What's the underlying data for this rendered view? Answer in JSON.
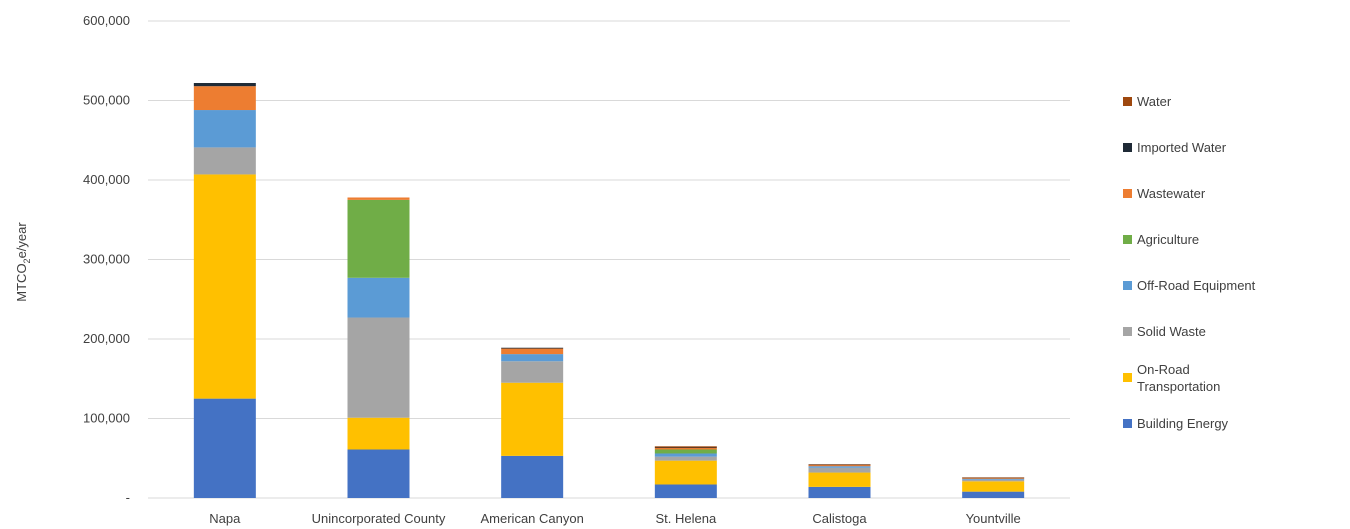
{
  "chart_data": {
    "type": "bar",
    "stacked": true,
    "ylabel": "MTCO2e/year",
    "ylim": [
      0,
      600000
    ],
    "yticks": [
      0,
      100000,
      200000,
      300000,
      400000,
      500000,
      600000
    ],
    "ytick_labels": [
      "-",
      "100,000",
      "200,000",
      "300,000",
      "400,000",
      "500,000",
      "600,000"
    ],
    "grid": true,
    "legend_position": "right",
    "categories": [
      "Napa",
      "Unincorporated County",
      "American Canyon",
      "St. Helena",
      "Calistoga",
      "Yountville"
    ],
    "series": [
      {
        "name": "Building Energy",
        "color": "#4472C4",
        "values": [
          125000,
          61000,
          53000,
          17000,
          14000,
          8000
        ]
      },
      {
        "name": "On-Road Transportation",
        "color": "#FFC000",
        "values": [
          282000,
          40000,
          92000,
          30000,
          18000,
          13000
        ]
      },
      {
        "name": "Solid Waste",
        "color": "#A5A5A5",
        "values": [
          34000,
          126000,
          27000,
          5000,
          6000,
          2000
        ]
      },
      {
        "name": "Off-Road Equipment",
        "color": "#5B9BD5",
        "values": [
          47000,
          50000,
          9000,
          4000,
          2000,
          1000
        ]
      },
      {
        "name": "Agriculture",
        "color": "#70AD47",
        "values": [
          0,
          98000,
          0,
          5000,
          0,
          0
        ]
      },
      {
        "name": "Wastewater",
        "color": "#ED7D31",
        "values": [
          30000,
          3000,
          7000,
          2000,
          1500,
          1000
        ]
      },
      {
        "name": "Imported Water",
        "color": "#1F2A36",
        "values": [
          4000,
          0,
          1000,
          500,
          500,
          500
        ]
      },
      {
        "name": "Water",
        "color": "#9E480E",
        "values": [
          0,
          0,
          0,
          1500,
          500,
          500
        ]
      }
    ]
  }
}
